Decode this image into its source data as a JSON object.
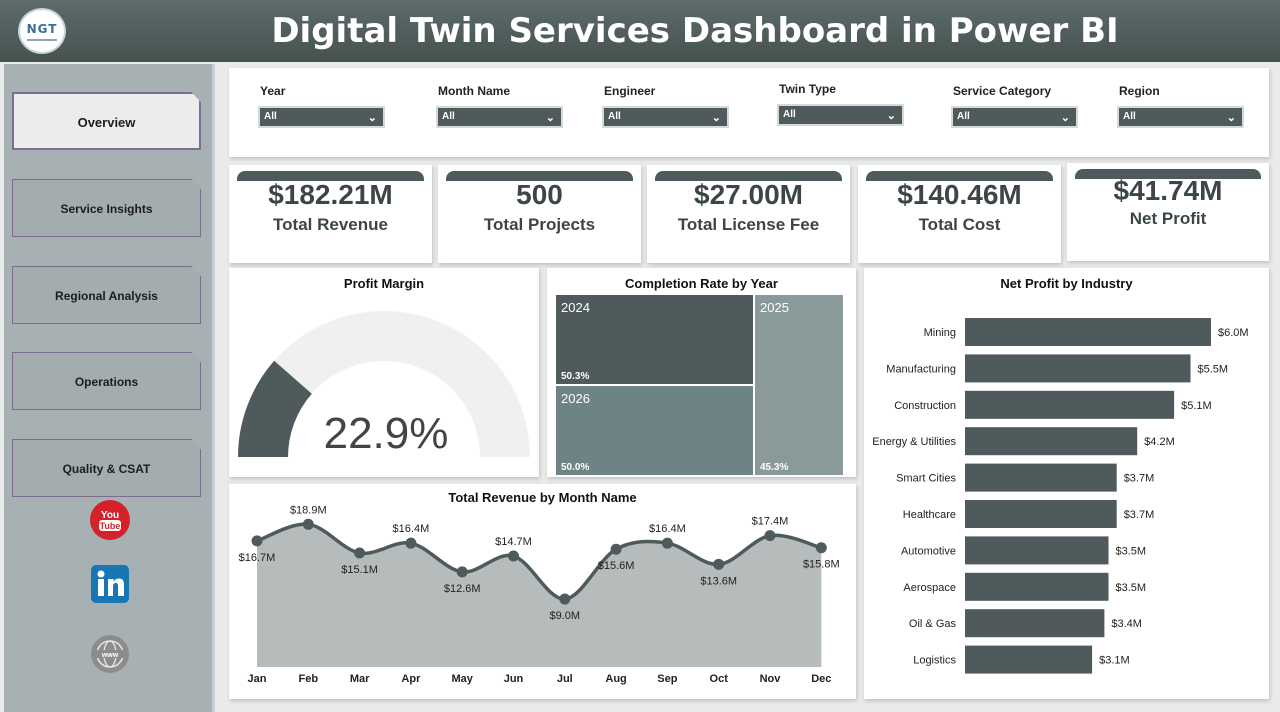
{
  "header": {
    "logo_text": "NGT",
    "title": "Digital Twin Services Dashboard in Power BI"
  },
  "sidebar": {
    "items": [
      {
        "label": "Overview",
        "active": true
      },
      {
        "label": "Service Insights",
        "active": false
      },
      {
        "label": "Regional Analysis",
        "active": false
      },
      {
        "label": "Operations",
        "active": false
      },
      {
        "label": "Quality & CSAT",
        "active": false
      }
    ],
    "social": [
      "youtube-icon",
      "linkedin-icon",
      "web-icon"
    ]
  },
  "filters": [
    {
      "label": "Year",
      "value": "All"
    },
    {
      "label": "Month Name",
      "value": "All"
    },
    {
      "label": "Engineer",
      "value": "All"
    },
    {
      "label": "Twin Type",
      "value": "All"
    },
    {
      "label": "Service Category",
      "value": "All"
    },
    {
      "label": "Region",
      "value": "All"
    }
  ],
  "kpis": [
    {
      "value": "$182.21M",
      "label": "Total Revenue"
    },
    {
      "value": "500",
      "label": "Total Projects"
    },
    {
      "value": "$27.00M",
      "label": "Total License Fee"
    },
    {
      "value": "$140.46M",
      "label": "Total Cost"
    },
    {
      "value": "$41.74M",
      "label": "Net Profit"
    }
  ],
  "profit_margin": {
    "title": "Profit Margin",
    "value_label": "22.9%",
    "value": 0.229
  },
  "completion": {
    "title": "Completion Rate by Year",
    "cells": [
      {
        "year": "2024",
        "value": "50.3%"
      },
      {
        "year": "2025",
        "value": "45.3%"
      },
      {
        "year": "2026",
        "value": "50.0%"
      }
    ]
  },
  "revenue_by_month": {
    "title": "Total Revenue by Month Name"
  },
  "net_profit_by_industry": {
    "title": "Net Profit by Industry"
  },
  "colors": {
    "header": "#4e5a5b",
    "dark_slate": "#4e5a5b",
    "teal_gray": "#6e8385",
    "light_gray": "#8a9a9b",
    "area": "#b5bcbb",
    "gauge_track": "#f1f0f0"
  },
  "chart_data": [
    {
      "type": "line",
      "title": "Total Revenue by Month Name",
      "categories": [
        "Jan",
        "Feb",
        "Mar",
        "Apr",
        "May",
        "Jun",
        "Jul",
        "Aug",
        "Sep",
        "Oct",
        "Nov",
        "Dec"
      ],
      "values": [
        16.7,
        18.9,
        15.1,
        16.4,
        12.6,
        14.7,
        9.0,
        15.6,
        16.4,
        13.6,
        17.4,
        15.8
      ],
      "labels": [
        "$16.7M",
        "$18.9M",
        "$15.1M",
        "$16.4M",
        "$12.6M",
        "$14.7M",
        "$9.0M",
        "$15.6M",
        "$16.4M",
        "$13.6M",
        "$17.4M",
        "$15.8M"
      ],
      "unit": "$M",
      "ylim": [
        0,
        20
      ],
      "xlabel": "",
      "ylabel": ""
    },
    {
      "type": "bar",
      "orientation": "horizontal",
      "title": "Net Profit by Industry",
      "categories": [
        "Mining",
        "Manufacturing",
        "Construction",
        "Energy & Utilities",
        "Smart Cities",
        "Healthcare",
        "Automotive",
        "Aerospace",
        "Oil & Gas",
        "Logistics"
      ],
      "values": [
        6.0,
        5.5,
        5.1,
        4.2,
        3.7,
        3.7,
        3.5,
        3.5,
        3.4,
        3.1
      ],
      "labels": [
        "$6.0M",
        "$5.5M",
        "$5.1M",
        "$4.2M",
        "$3.7M",
        "$3.7M",
        "$3.5M",
        "$3.5M",
        "$3.4M",
        "$3.1M"
      ],
      "unit": "$M",
      "xlabel": "",
      "ylabel": ""
    },
    {
      "type": "heatmap",
      "title": "Completion Rate by Year",
      "categories": [
        "2024",
        "2025",
        "2026"
      ],
      "values": [
        50.3,
        45.3,
        50.0
      ],
      "unit": "%"
    }
  ]
}
